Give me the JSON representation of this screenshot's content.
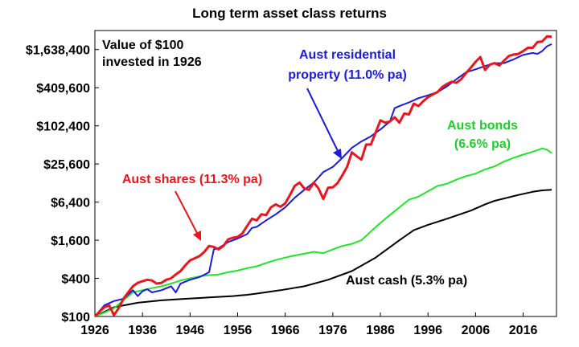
{
  "chart_data": {
    "type": "line",
    "title": "Long term asset class returns",
    "y_scale": "log2",
    "ylim": [
      100,
      3276800
    ],
    "xlim": [
      1926,
      2023
    ],
    "y_ticks": [
      100,
      400,
      1600,
      6400,
      25600,
      102400,
      409600,
      1638400
    ],
    "y_tick_labels": [
      "$100",
      "$400",
      "$1,600",
      "$6,400",
      "$25,600",
      "$102,400",
      "$409,600",
      "$1,638,400"
    ],
    "x_ticks": [
      1926,
      1936,
      1946,
      1956,
      1966,
      1976,
      1986,
      1996,
      2006,
      2016
    ],
    "x_tick_labels": [
      "1926",
      "1936",
      "1946",
      "1956",
      "1966",
      "1976",
      "1986",
      "1996",
      "2006",
      "2016"
    ],
    "annotations": {
      "note": [
        "Value of $100",
        "invested in 1926"
      ],
      "property": [
        "Aust residential",
        "property (11.0% pa)"
      ],
      "bonds": [
        "Aust bonds",
        "(6.6% pa)"
      ],
      "shares": "Aust shares (11.3% pa)",
      "cash": "Aust cash (5.3% pa)"
    },
    "series": [
      {
        "name": "Aust shares (11.3% pa)",
        "color": "#e8161e",
        "points": [
          [
            1926,
            100
          ],
          [
            1927,
            120
          ],
          [
            1928,
            140
          ],
          [
            1929,
            150
          ],
          [
            1930,
            105
          ],
          [
            1931,
            135
          ],
          [
            1932,
            190
          ],
          [
            1933,
            240
          ],
          [
            1934,
            300
          ],
          [
            1935,
            340
          ],
          [
            1936,
            360
          ],
          [
            1937,
            380
          ],
          [
            1938,
            370
          ],
          [
            1939,
            330
          ],
          [
            1940,
            340
          ],
          [
            1941,
            380
          ],
          [
            1942,
            400
          ],
          [
            1943,
            460
          ],
          [
            1944,
            520
          ],
          [
            1945,
            640
          ],
          [
            1946,
            770
          ],
          [
            1947,
            830
          ],
          [
            1948,
            900
          ],
          [
            1949,
            1050
          ],
          [
            1950,
            1300
          ],
          [
            1951,
            1250
          ],
          [
            1952,
            1150
          ],
          [
            1953,
            1300
          ],
          [
            1954,
            1650
          ],
          [
            1955,
            1750
          ],
          [
            1956,
            1800
          ],
          [
            1957,
            2050
          ],
          [
            1958,
            2700
          ],
          [
            1959,
            3500
          ],
          [
            1960,
            3300
          ],
          [
            1961,
            4100
          ],
          [
            1962,
            4000
          ],
          [
            1963,
            5300
          ],
          [
            1964,
            5900
          ],
          [
            1965,
            5400
          ],
          [
            1966,
            6100
          ],
          [
            1967,
            8300
          ],
          [
            1968,
            11500
          ],
          [
            1969,
            13000
          ],
          [
            1970,
            10500
          ],
          [
            1971,
            10000
          ],
          [
            1972,
            13000
          ],
          [
            1973,
            10500
          ],
          [
            1974,
            7200
          ],
          [
            1975,
            10800
          ],
          [
            1976,
            11000
          ],
          [
            1977,
            12800
          ],
          [
            1978,
            17000
          ],
          [
            1979,
            23000
          ],
          [
            1980,
            39000
          ],
          [
            1981,
            34000
          ],
          [
            1982,
            30000
          ],
          [
            1983,
            52000
          ],
          [
            1984,
            52000
          ],
          [
            1985,
            80000
          ],
          [
            1986,
            125000
          ],
          [
            1987,
            115000
          ],
          [
            1988,
            120000
          ],
          [
            1989,
            140000
          ],
          [
            1990,
            115000
          ],
          [
            1991,
            160000
          ],
          [
            1992,
            155000
          ],
          [
            1993,
            230000
          ],
          [
            1994,
            210000
          ],
          [
            1995,
            250000
          ],
          [
            1996,
            290000
          ],
          [
            1997,
            320000
          ],
          [
            1998,
            350000
          ],
          [
            1999,
            420000
          ],
          [
            2000,
            470000
          ],
          [
            2001,
            510000
          ],
          [
            2002,
            490000
          ],
          [
            2003,
            560000
          ],
          [
            2004,
            700000
          ],
          [
            2005,
            850000
          ],
          [
            2006,
            1050000
          ],
          [
            2007,
            1250000
          ],
          [
            2008,
            780000
          ],
          [
            2009,
            950000
          ],
          [
            2010,
            1000000
          ],
          [
            2011,
            920000
          ],
          [
            2012,
            1100000
          ],
          [
            2013,
            1300000
          ],
          [
            2014,
            1370000
          ],
          [
            2015,
            1400000
          ],
          [
            2016,
            1550000
          ],
          [
            2017,
            1750000
          ],
          [
            2018,
            1750000
          ],
          [
            2019,
            2150000
          ],
          [
            2020,
            2200000
          ],
          [
            2021,
            2650000
          ],
          [
            2022,
            2620000
          ]
        ]
      },
      {
        "name": "Aust residential property (11.0% pa)",
        "color": "#1c1cd8",
        "points": [
          [
            1926,
            100
          ],
          [
            1928,
            150
          ],
          [
            1930,
            175
          ],
          [
            1932,
            190
          ],
          [
            1934,
            260
          ],
          [
            1935,
            210
          ],
          [
            1936,
            250
          ],
          [
            1937,
            270
          ],
          [
            1938,
            240
          ],
          [
            1940,
            260
          ],
          [
            1942,
            300
          ],
          [
            1943,
            240
          ],
          [
            1944,
            330
          ],
          [
            1946,
            380
          ],
          [
            1948,
            420
          ],
          [
            1950,
            500
          ],
          [
            1951,
            1150
          ],
          [
            1952,
            1200
          ],
          [
            1954,
            1500
          ],
          [
            1956,
            1700
          ],
          [
            1958,
            2000
          ],
          [
            1959,
            2500
          ],
          [
            1960,
            2600
          ],
          [
            1962,
            3300
          ],
          [
            1964,
            4100
          ],
          [
            1966,
            5300
          ],
          [
            1968,
            7500
          ],
          [
            1970,
            10000
          ],
          [
            1972,
            13000
          ],
          [
            1974,
            19000
          ],
          [
            1976,
            23000
          ],
          [
            1978,
            32000
          ],
          [
            1980,
            46000
          ],
          [
            1982,
            58000
          ],
          [
            1984,
            70000
          ],
          [
            1986,
            90000
          ],
          [
            1988,
            120000
          ],
          [
            1989,
            195000
          ],
          [
            1990,
            210000
          ],
          [
            1992,
            240000
          ],
          [
            1994,
            280000
          ],
          [
            1996,
            310000
          ],
          [
            1998,
            350000
          ],
          [
            2000,
            430000
          ],
          [
            2002,
            560000
          ],
          [
            2004,
            720000
          ],
          [
            2006,
            800000
          ],
          [
            2008,
            900000
          ],
          [
            2010,
            1000000
          ],
          [
            2012,
            1000000
          ],
          [
            2014,
            1150000
          ],
          [
            2016,
            1350000
          ],
          [
            2018,
            1450000
          ],
          [
            2019,
            1400000
          ],
          [
            2020,
            1550000
          ],
          [
            2021,
            1850000
          ],
          [
            2022,
            2000000
          ]
        ]
      },
      {
        "name": "Aust bonds (6.6% pa)",
        "color": "#22e42c",
        "points": [
          [
            1926,
            100
          ],
          [
            1928,
            115
          ],
          [
            1930,
            135
          ],
          [
            1932,
            180
          ],
          [
            1934,
            240
          ],
          [
            1936,
            260
          ],
          [
            1938,
            280
          ],
          [
            1940,
            300
          ],
          [
            1942,
            330
          ],
          [
            1944,
            370
          ],
          [
            1946,
            400
          ],
          [
            1948,
            430
          ],
          [
            1950,
            450
          ],
          [
            1952,
            460
          ],
          [
            1954,
            500
          ],
          [
            1956,
            530
          ],
          [
            1958,
            580
          ],
          [
            1960,
            620
          ],
          [
            1962,
            700
          ],
          [
            1964,
            780
          ],
          [
            1966,
            850
          ],
          [
            1968,
            920
          ],
          [
            1970,
            980
          ],
          [
            1972,
            1050
          ],
          [
            1974,
            1000
          ],
          [
            1976,
            1150
          ],
          [
            1978,
            1300
          ],
          [
            1980,
            1400
          ],
          [
            1982,
            1600
          ],
          [
            1984,
            2200
          ],
          [
            1986,
            3000
          ],
          [
            1988,
            4000
          ],
          [
            1990,
            5300
          ],
          [
            1992,
            7000
          ],
          [
            1994,
            7800
          ],
          [
            1996,
            9500
          ],
          [
            1998,
            11500
          ],
          [
            2000,
            12500
          ],
          [
            2002,
            14500
          ],
          [
            2004,
            16500
          ],
          [
            2006,
            18000
          ],
          [
            2008,
            21000
          ],
          [
            2010,
            23500
          ],
          [
            2012,
            28000
          ],
          [
            2014,
            32000
          ],
          [
            2016,
            36000
          ],
          [
            2018,
            40000
          ],
          [
            2020,
            45000
          ],
          [
            2021,
            43000
          ],
          [
            2022,
            38000
          ]
        ]
      },
      {
        "name": "Aust cash (5.3% pa)",
        "color": "#000000",
        "points": [
          [
            1926,
            100
          ],
          [
            1930,
            140
          ],
          [
            1935,
            165
          ],
          [
            1940,
            180
          ],
          [
            1945,
            190
          ],
          [
            1950,
            200
          ],
          [
            1955,
            210
          ],
          [
            1958,
            220
          ],
          [
            1960,
            230
          ],
          [
            1965,
            260
          ],
          [
            1970,
            300
          ],
          [
            1975,
            380
          ],
          [
            1980,
            520
          ],
          [
            1985,
            850
          ],
          [
            1990,
            1600
          ],
          [
            1993,
            2300
          ],
          [
            1996,
            2800
          ],
          [
            2000,
            3500
          ],
          [
            2005,
            4700
          ],
          [
            2008,
            5900
          ],
          [
            2010,
            6700
          ],
          [
            2015,
            8300
          ],
          [
            2018,
            9300
          ],
          [
            2020,
            9800
          ],
          [
            2022,
            10000
          ]
        ]
      }
    ]
  }
}
